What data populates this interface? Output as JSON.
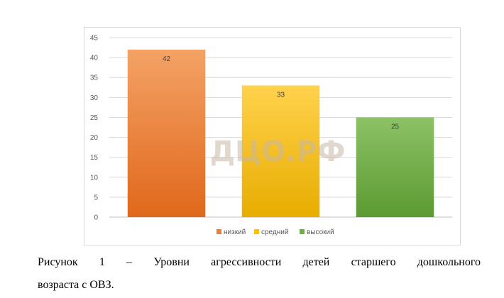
{
  "chart_data": {
    "type": "bar",
    "categories": [
      "низкий",
      "средний",
      "высокий"
    ],
    "values": [
      42,
      33,
      25
    ],
    "ylim": [
      0,
      45
    ],
    "yticks": [
      "0",
      "5",
      "10",
      "15",
      "20",
      "25",
      "30",
      "35",
      "40",
      "45"
    ],
    "data_labels": [
      "42",
      "33",
      "25"
    ],
    "grid": true,
    "legend": "bottom",
    "legend_entries": [
      "низкий",
      "средний",
      "высокий"
    ],
    "colors": [
      "#ed7d31",
      "#ffc000",
      "#70ad47"
    ],
    "gradient_light": [
      "#f4a266",
      "#ffd24d",
      "#8cc266"
    ],
    "gradient_dark": [
      "#e0681b",
      "#e8ad00",
      "#5c9a32"
    ]
  },
  "watermark": "ДЦО.РФ",
  "caption": {
    "line1": "Рисунок 1 – Уровни агрессивности детей старшего дошкольного",
    "line2": "возраста с ОВЗ."
  }
}
